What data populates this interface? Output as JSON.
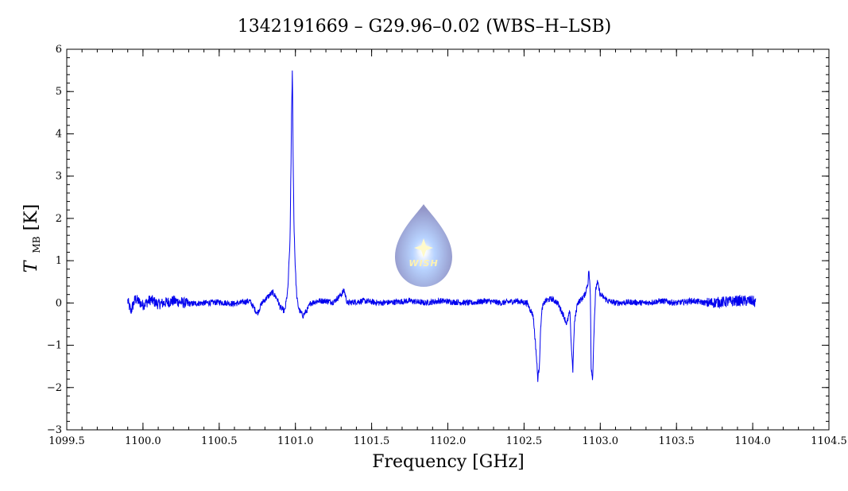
{
  "chart_data": {
    "type": "line",
    "title": "1342191669 – G29.96–0.02 (WBS–H–LSB)",
    "xlabel": "Frequency [GHz]",
    "ylabel": {
      "main": "T",
      "sub": "MB",
      "unit": " [K]"
    },
    "xlim": [
      1099.5,
      1104.5
    ],
    "ylim": [
      -3,
      6
    ],
    "x_ticks": [
      1099.5,
      1100.0,
      1100.5,
      1101.0,
      1101.5,
      1102.0,
      1102.5,
      1103.0,
      1103.5,
      1104.0,
      1104.5
    ],
    "x_tick_labels": [
      "1099.5",
      "1100.0",
      "1100.5",
      "1101.0",
      "1101.5",
      "1102.0",
      "1102.5",
      "1103.0",
      "1103.5",
      "1104.0",
      "1104.5"
    ],
    "y_ticks": [
      -3,
      -2,
      -1,
      0,
      1,
      2,
      3,
      4,
      5,
      6
    ],
    "y_tick_labels": [
      "−3",
      "−2",
      "−1",
      "0",
      "1",
      "2",
      "3",
      "4",
      "5",
      "6"
    ],
    "grid": false,
    "series": [
      {
        "color": "#0000ee",
        "x": [
          1099.9,
          1099.92,
          1099.95,
          1100.0,
          1100.05,
          1100.1,
          1100.2,
          1100.3,
          1100.4,
          1100.5,
          1100.6,
          1100.7,
          1100.75,
          1100.78,
          1100.82,
          1100.85,
          1100.88,
          1100.9,
          1100.93,
          1100.95,
          1100.965,
          1100.975,
          1100.98,
          1100.985,
          1100.99,
          1100.995,
          1101.0,
          1101.005,
          1101.01,
          1101.02,
          1101.03,
          1101.05,
          1101.08,
          1101.1,
          1101.15,
          1101.2,
          1101.25,
          1101.3,
          1101.32,
          1101.34,
          1101.38,
          1101.45,
          1101.55,
          1101.65,
          1101.75,
          1101.85,
          1101.95,
          1102.05,
          1102.15,
          1102.25,
          1102.35,
          1102.45,
          1102.52,
          1102.56,
          1102.58,
          1102.59,
          1102.6,
          1102.61,
          1102.62,
          1102.64,
          1102.68,
          1102.72,
          1102.76,
          1102.78,
          1102.8,
          1102.81,
          1102.82,
          1102.83,
          1102.85,
          1102.88,
          1102.9,
          1102.92,
          1102.925,
          1102.935,
          1102.94,
          1102.95,
          1102.96,
          1102.97,
          1102.98,
          1103.0,
          1103.05,
          1103.1,
          1103.2,
          1103.3,
          1103.4,
          1103.5,
          1103.6,
          1103.7,
          1103.8,
          1103.9,
          1104.0,
          1104.02
        ],
        "y": [
          0.05,
          -0.2,
          0.1,
          -0.05,
          0.08,
          -0.03,
          0.05,
          -0.02,
          0.0,
          0.02,
          -0.02,
          0.05,
          -0.25,
          0.0,
          0.15,
          0.25,
          0.1,
          -0.1,
          -0.2,
          0.3,
          1.5,
          4.5,
          5.5,
          3.5,
          2.0,
          1.3,
          0.8,
          0.4,
          0.1,
          -0.1,
          -0.2,
          -0.3,
          -0.15,
          0.0,
          0.05,
          0.05,
          0.02,
          0.2,
          0.3,
          0.0,
          0.02,
          0.05,
          0.0,
          0.02,
          0.05,
          0.0,
          0.05,
          0.02,
          0.0,
          0.05,
          0.0,
          0.05,
          0.0,
          -0.3,
          -1.2,
          -1.8,
          -1.5,
          -0.5,
          -0.1,
          0.05,
          0.1,
          0.0,
          -0.3,
          -0.5,
          -0.2,
          -1.0,
          -1.6,
          -0.5,
          0.0,
          0.1,
          0.2,
          0.5,
          0.8,
          0.2,
          -1.5,
          -1.8,
          -0.5,
          0.3,
          0.5,
          0.2,
          0.05,
          0.0,
          0.02,
          0.0,
          0.05,
          0.0,
          0.05,
          0.0,
          0.02,
          0.05,
          0.05,
          0.0
        ]
      }
    ]
  },
  "watermark": {
    "logo_text": "WISH",
    "icon": "wish-drop-logo-icon"
  }
}
